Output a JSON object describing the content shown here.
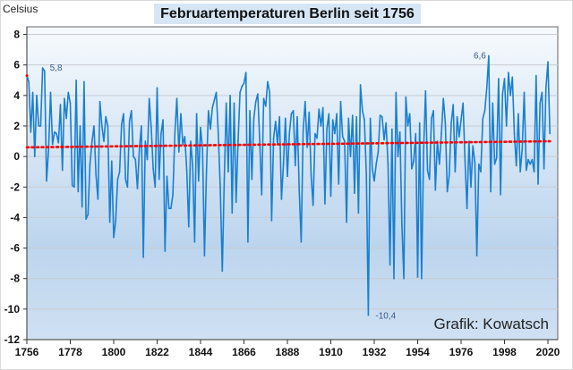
{
  "chart_data": {
    "type": "line",
    "title": "Februartemperaturen Berlin seit 1756",
    "ylabel": "Celsius",
    "xlabel": "",
    "credit": "Grafik: Kowatsch",
    "x_start": 1756,
    "xlim": [
      1756,
      2024
    ],
    "ylim": [
      -12,
      8.5
    ],
    "x_ticks": [
      1756,
      1778,
      1800,
      1822,
      1844,
      1866,
      1888,
      1910,
      1932,
      1954,
      1976,
      1998,
      2020
    ],
    "y_ticks": [
      8,
      6,
      4,
      2,
      0,
      -2,
      -4,
      -6,
      -8,
      -10,
      -12
    ],
    "grid": true,
    "colors": {
      "series": "#1a7fd0",
      "trend": "#ff0000"
    },
    "values": [
      5.3,
      4.9,
      1.6,
      4.2,
      0.0,
      4.0,
      2.0,
      2.0,
      5.8,
      5.6,
      -1.6,
      0.5,
      4.2,
      0.8,
      1.6,
      1.5,
      0.9,
      3.4,
      -0.9,
      3.8,
      2.5,
      4.2,
      3.5,
      -1.9,
      -2.0,
      5.0,
      -2.3,
      2.0,
      -3.3,
      4.9,
      -4.1,
      -3.8,
      -0.5,
      1.0,
      2.0,
      -1.2,
      -2.8,
      3.6,
      2.0,
      1.0,
      2.6,
      2.0,
      -4.3,
      -0.3,
      -5.3,
      -4.2,
      -1.5,
      -1.0,
      2.1,
      2.8,
      -1.5,
      -2.0,
      2.3,
      3.0,
      0.0,
      -0.2,
      -2.1,
      0.5,
      2.0,
      -6.6,
      1.0,
      -0.2,
      3.8,
      1.9,
      -0.8,
      -2.0,
      4.5,
      -1.5,
      1.5,
      2.4,
      -6.2,
      -1.3,
      -3.4,
      -3.4,
      -2.5,
      1.5,
      3.8,
      0.3,
      2.8,
      0.8,
      1.3,
      -0.9,
      -4.6,
      1.0,
      -0.6,
      -5.6,
      2.8,
      -1.6,
      1.9,
      0.5,
      -6.5,
      -1.0,
      3.0,
      1.8,
      3.2,
      3.7,
      4.2,
      1.5,
      -2.0,
      -7.5,
      -1.5,
      3.5,
      -1.0,
      4.0,
      -3.7,
      3.5,
      -3.0,
      1.0,
      4.2,
      4.6,
      4.8,
      5.5,
      -5.6,
      3.0,
      -1.5,
      2.5,
      3.6,
      4.1,
      1.0,
      -2.5,
      3.8,
      3.3,
      4.9,
      4.2,
      -4.2,
      1.2,
      2.3,
      0.8,
      2.6,
      -2.8,
      -0.5,
      2.5,
      -1.3,
      1.5,
      2.8,
      3.0,
      -0.6,
      2.6,
      -2.2,
      -5.6,
      1.7,
      3.6,
      0.6,
      2.9,
      -1.2,
      -3.2,
      1.5,
      1.2,
      3.1,
      2.0,
      3.2,
      -3.1,
      1.8,
      2.8,
      -2.6,
      2.4,
      1.5,
      2.8,
      -1.8,
      3.6,
      1.3,
      1.0,
      -4.3,
      2.5,
      0.0,
      2.7,
      -2.4,
      2.6,
      -3.7,
      4.7,
      3.0,
      2.4,
      -1.2,
      -10.4,
      2.5,
      -0.8,
      -1.6,
      -0.5,
      0.3,
      2.7,
      2.6,
      1.1,
      2.2,
      -0.5,
      -7.1,
      1.8,
      -8.0,
      4.2,
      0.0,
      1.6,
      -4.5,
      -8.0,
      3.9,
      2.0,
      2.8,
      -0.8,
      -0.3,
      1.5,
      -7.9,
      2.2,
      -8.0,
      0.3,
      4.3,
      -0.9,
      -1.5,
      2.5,
      3.0,
      -2.2,
      1.0,
      -0.5,
      1.5,
      3.8,
      2.2,
      -2.3,
      -1.2,
      2.2,
      3.4,
      -1.0,
      2.6,
      1.3,
      2.4,
      3.5,
      -0.3,
      -3.4,
      1.0,
      -2.0,
      0.7,
      -0.4,
      -6.5,
      -0.5,
      -1.0,
      2.5,
      3.0,
      4.5,
      6.6,
      -2.3,
      3.5,
      -0.5,
      -0.1,
      5.1,
      -2.5,
      4.1,
      5.1,
      2.0,
      5.5,
      4.0,
      5.2,
      1.5,
      -0.6,
      2.8,
      -1.0,
      0.5,
      4.2,
      -0.9,
      -0.2,
      -0.5,
      -0.2,
      -1.0,
      5.3,
      -1.8,
      3.5,
      4.2,
      -0.8,
      4.5,
      6.2,
      1.5
    ],
    "trend": {
      "start": [
        1756,
        0.6
      ],
      "end": [
        2021,
        1.0
      ]
    },
    "annotations": [
      {
        "year": 1764,
        "value": 5.8,
        "text": "5,8"
      },
      {
        "year": 1990,
        "value": 6.6,
        "text": "6,6"
      },
      {
        "year": 1929,
        "value": -10.4,
        "text": "-10,4"
      }
    ]
  }
}
